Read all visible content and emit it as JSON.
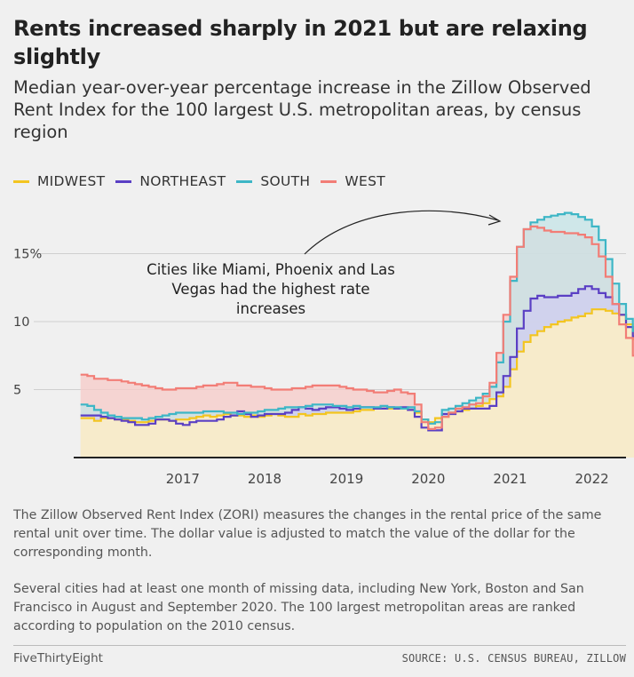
{
  "title": "Rents increased sharply in 2021 but are relaxing slightly",
  "subtitle": "Median year-over-year percentage increase in the Zillow Observed Rent Index for the 100 largest U.S. metropolitan areas, by census region",
  "legend": [
    {
      "label": "MIDWEST",
      "color": "#f3c520"
    },
    {
      "label": "NORTHEAST",
      "color": "#5a3fc4"
    },
    {
      "label": "SOUTH",
      "color": "#3db6c6"
    },
    {
      "label": "WEST",
      "color": "#f27d76"
    }
  ],
  "annotation": "Cities like Miami, Phoenix and Las Vegas had the highest rate increases",
  "notes": [
    "The Zillow Observed Rent Index (ZORI) measures the changes in the rental price of the same rental unit over time. The dollar value is adjusted to match the value of the dollar for the corresponding month.",
    "Several cities had at least one month of missing data, including New York, Boston and San Francisco in August and September 2020. The 100 largest metropolitan areas are ranked according to population on the 2010 census."
  ],
  "brand": "FiveThirtyEight",
  "source": "SOURCE: U.S. CENSUS BUREAU, ZILLOW",
  "chart_data": {
    "type": "area",
    "x_start": "2016-04",
    "x_step": "month",
    "xlim": [
      "2016-03",
      "2022-12"
    ],
    "ylim": [
      0,
      18.5
    ],
    "y_ticks": [
      5,
      10,
      15
    ],
    "y_tick_labels": [
      "5",
      "10",
      "15%"
    ],
    "x_ticks": [
      "2017",
      "2018",
      "2019",
      "2020",
      "2021",
      "2022"
    ],
    "grid": true,
    "legend_position": "top-left",
    "series": [
      {
        "name": "MIDWEST",
        "color": "#f3c520",
        "values": [
          2.9,
          2.9,
          2.7,
          2.9,
          2.9,
          2.8,
          2.8,
          2.7,
          2.6,
          2.6,
          2.7,
          2.8,
          2.8,
          2.7,
          2.8,
          2.8,
          2.9,
          3.0,
          3.1,
          3.0,
          3.1,
          3.2,
          3.1,
          3.1,
          3.0,
          3.1,
          3.0,
          3.1,
          3.2,
          3.1,
          3.0,
          3.0,
          3.2,
          3.1,
          3.2,
          3.2,
          3.3,
          3.3,
          3.3,
          3.3,
          3.4,
          3.5,
          3.5,
          3.6,
          3.6,
          3.6,
          3.6,
          3.6,
          3.5,
          3.3,
          2.8,
          2.6,
          2.9,
          3.0,
          3.3,
          3.4,
          3.5,
          3.6,
          3.8,
          4.0,
          4.3,
          4.5,
          5.2,
          6.5,
          7.8,
          8.5,
          9.0,
          9.3,
          9.6,
          9.8,
          10.0,
          10.1,
          10.3,
          10.4,
          10.6,
          10.9,
          10.9,
          10.8,
          10.6,
          10.5,
          9.8,
          8.7,
          7.6
        ]
      },
      {
        "name": "NORTHEAST",
        "color": "#5a3fc4",
        "values": [
          3.1,
          3.1,
          3.1,
          3.0,
          2.9,
          2.8,
          2.7,
          2.6,
          2.4,
          2.4,
          2.5,
          2.8,
          2.8,
          2.7,
          2.5,
          2.4,
          2.6,
          2.7,
          2.7,
          2.7,
          2.8,
          3.0,
          3.1,
          3.4,
          3.2,
          3.0,
          3.1,
          3.2,
          3.2,
          3.2,
          3.3,
          3.5,
          3.7,
          3.6,
          3.5,
          3.6,
          3.7,
          3.7,
          3.6,
          3.5,
          3.6,
          3.7,
          3.7,
          3.6,
          3.6,
          3.7,
          3.6,
          3.7,
          3.5,
          3.0,
          2.2,
          2.0,
          2.0,
          3.2,
          3.2,
          3.4,
          3.6,
          3.6,
          3.6,
          3.6,
          3.8,
          4.8,
          6.0,
          7.4,
          9.5,
          10.8,
          11.7,
          11.9,
          11.8,
          11.8,
          11.9,
          11.9,
          12.1,
          12.4,
          12.6,
          12.4,
          12.1,
          11.8,
          11.3,
          10.5,
          9.6,
          8.9,
          8.4
        ]
      },
      {
        "name": "SOUTH",
        "color": "#3db6c6",
        "values": [
          3.9,
          3.8,
          3.5,
          3.3,
          3.1,
          3.0,
          2.9,
          2.9,
          2.9,
          2.8,
          2.9,
          3.0,
          3.1,
          3.2,
          3.3,
          3.3,
          3.3,
          3.3,
          3.4,
          3.4,
          3.4,
          3.3,
          3.3,
          3.2,
          3.3,
          3.3,
          3.4,
          3.5,
          3.5,
          3.6,
          3.7,
          3.7,
          3.7,
          3.8,
          3.9,
          3.9,
          3.9,
          3.8,
          3.8,
          3.7,
          3.8,
          3.7,
          3.7,
          3.7,
          3.8,
          3.7,
          3.7,
          3.6,
          3.7,
          3.4,
          2.8,
          2.5,
          2.6,
          3.5,
          3.6,
          3.8,
          4.0,
          4.2,
          4.4,
          4.7,
          5.2,
          7.0,
          10.0,
          13.0,
          15.5,
          16.8,
          17.3,
          17.5,
          17.7,
          17.8,
          17.9,
          18.0,
          17.9,
          17.7,
          17.5,
          17.0,
          16.0,
          14.6,
          12.8,
          11.3,
          10.2,
          9.3,
          9.1
        ]
      },
      {
        "name": "WEST",
        "color": "#f27d76",
        "values": [
          6.1,
          6.0,
          5.8,
          5.8,
          5.7,
          5.7,
          5.6,
          5.5,
          5.4,
          5.3,
          5.2,
          5.1,
          5.0,
          5.0,
          5.1,
          5.1,
          5.1,
          5.2,
          5.3,
          5.3,
          5.4,
          5.5,
          5.5,
          5.3,
          5.3,
          5.2,
          5.2,
          5.1,
          5.0,
          5.0,
          5.0,
          5.1,
          5.1,
          5.2,
          5.3,
          5.3,
          5.3,
          5.3,
          5.2,
          5.1,
          5.0,
          5.0,
          4.9,
          4.8,
          4.8,
          4.9,
          5.0,
          4.8,
          4.7,
          3.9,
          2.6,
          2.1,
          2.2,
          3.0,
          3.3,
          3.6,
          3.7,
          3.9,
          4.0,
          4.5,
          5.5,
          7.7,
          10.5,
          13.3,
          15.5,
          16.8,
          17.0,
          16.9,
          16.7,
          16.6,
          16.6,
          16.5,
          16.5,
          16.4,
          16.2,
          15.7,
          14.8,
          13.3,
          11.3,
          9.8,
          8.8,
          7.5,
          6.2
        ]
      }
    ]
  }
}
